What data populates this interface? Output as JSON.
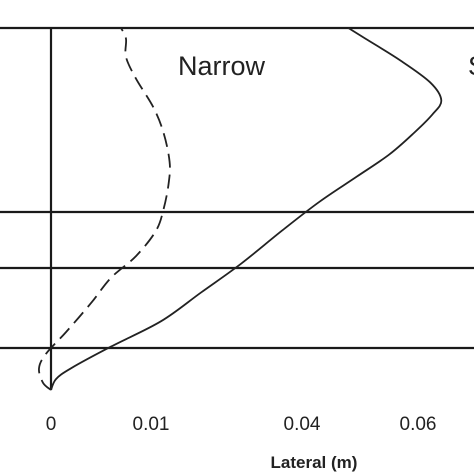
{
  "chart_data": {
    "type": "line",
    "xlabel": "Lateral (m)",
    "ylabel": "",
    "x_ticks": [
      {
        "value": 0,
        "label": "0"
      },
      {
        "value": 0.01,
        "label": "0.01"
      },
      {
        "value": 0.04,
        "label": "0.04"
      },
      {
        "value": 0.06,
        "label": "0.06"
      }
    ],
    "grid": "horizontal lines",
    "legend": "none",
    "series": [
      {
        "name": "Narrow",
        "style": "dashed",
        "color": "#222222",
        "points": [
          [
            0,
            0
          ],
          [
            -0.0008,
            0.02
          ],
          [
            -0.0012,
            0.06
          ],
          [
            -0.0005,
            0.1
          ],
          [
            0.0015,
            0.16
          ],
          [
            0.004,
            0.24
          ],
          [
            0.006,
            0.31
          ],
          [
            0.0085,
            0.37
          ],
          [
            0.011,
            0.44
          ],
          [
            0.0125,
            0.5
          ],
          [
            0.0135,
            0.57
          ],
          [
            0.0137,
            0.63
          ],
          [
            0.0125,
            0.71
          ],
          [
            0.0105,
            0.78
          ],
          [
            0.0085,
            0.86
          ],
          [
            0.0075,
            0.92
          ],
          [
            0.0075,
            0.97
          ],
          [
            0.007,
            1.0
          ]
        ]
      },
      {
        "name": "",
        "style": "solid",
        "color": "#222222",
        "points": [
          [
            0,
            0
          ],
          [
            0.0005,
            0.03
          ],
          [
            0.002,
            0.06
          ],
          [
            0.006,
            0.12
          ],
          [
            0.012,
            0.19
          ],
          [
            0.02,
            0.27
          ],
          [
            0.028,
            0.35
          ],
          [
            0.036,
            0.44
          ],
          [
            0.043,
            0.52
          ],
          [
            0.0495,
            0.59
          ],
          [
            0.055,
            0.65
          ],
          [
            0.0593,
            0.71
          ],
          [
            0.0615,
            0.76
          ],
          [
            0.0625,
            0.8
          ],
          [
            0.0613,
            0.85
          ],
          [
            0.057,
            0.91
          ],
          [
            0.051,
            0.97
          ],
          [
            0.048,
            1.0
          ]
        ]
      }
    ],
    "annotations": [
      "Narrow",
      "S"
    ]
  }
}
